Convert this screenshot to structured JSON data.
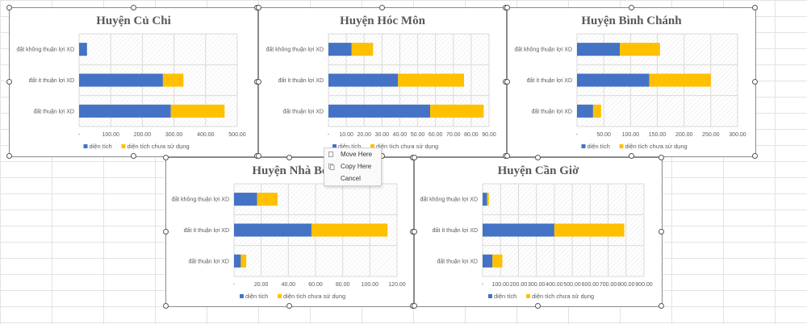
{
  "chart_data": [
    {
      "type": "bar",
      "title": "Huyện Củ Chi",
      "categories": [
        "đất không thuận lợi XD",
        "đất ít thuận lợi XD",
        "đất thuận lợi XD"
      ],
      "series": [
        {
          "name": "diện tích",
          "values": [
            25,
            265,
            290
          ]
        },
        {
          "name": "diện tích chưa sử dụng",
          "values": [
            0,
            65,
            170
          ]
        }
      ],
      "xlim": [
        0,
        500
      ],
      "xticks": [
        "-",
        "100.00",
        "200.00",
        "300.00",
        "400.00",
        "500.00"
      ],
      "stacked": true,
      "grid": true,
      "legend": "bottom"
    },
    {
      "type": "bar",
      "title": "Huyện Hóc Môn",
      "categories": [
        "đất không thuận lợi XD",
        "đất ít thuận lợi XD",
        "đất thuận lợi XD"
      ],
      "series": [
        {
          "name": "diện tích",
          "values": [
            13,
            39,
            57
          ]
        },
        {
          "name": "diện tích chưa sử dụng",
          "values": [
            12,
            37,
            30
          ]
        }
      ],
      "xlim": [
        0,
        90
      ],
      "xticks": [
        "-",
        "10.00",
        "20.00",
        "30.00",
        "40.00",
        "50.00",
        "60.00",
        "70.00",
        "80.00",
        "90.00"
      ],
      "stacked": true,
      "grid": true,
      "legend": "bottom"
    },
    {
      "type": "bar",
      "title": "Huyện Bình Chánh",
      "categories": [
        "đất không thuận lợi XD",
        "đất ít thuận lợi XD",
        "đất thuận lợi XD"
      ],
      "series": [
        {
          "name": "diện tích",
          "values": [
            80,
            135,
            30
          ]
        },
        {
          "name": "diện tích chưa sử dụng",
          "values": [
            75,
            115,
            15
          ]
        }
      ],
      "xlim": [
        0,
        300
      ],
      "xticks": [
        "-",
        "50.00",
        "100.00",
        "150.00",
        "200.00",
        "250.00",
        "300.00"
      ],
      "stacked": true,
      "grid": true,
      "legend": "bottom"
    },
    {
      "type": "bar",
      "title": "Huyện Nhà Bè",
      "categories": [
        "đất không thuận lợi XD",
        "đất ít thuận lợi XD",
        "đất thuận lợi XD"
      ],
      "series": [
        {
          "name": "diện tích",
          "values": [
            17,
            57,
            5
          ]
        },
        {
          "name": "diện tích chưa sử dụng",
          "values": [
            15,
            56,
            4
          ]
        }
      ],
      "xlim": [
        0,
        120
      ],
      "xticks": [
        "-",
        "20.00",
        "40.00",
        "60.00",
        "80.00",
        "100.00",
        "120.00"
      ],
      "stacked": true,
      "grid": true,
      "legend": "bottom"
    },
    {
      "type": "bar",
      "title": "Huyện Cần Giờ",
      "categories": [
        "đất không thuận lợi XD",
        "đất ít thuận lợi XD",
        "đất thuận lợi XD"
      ],
      "series": [
        {
          "name": "diện tích",
          "values": [
            25,
            400,
            55
          ]
        },
        {
          "name": "diện tích chưa sử dụng",
          "values": [
            10,
            390,
            55
          ]
        }
      ],
      "xlim": [
        0,
        900
      ],
      "xticks": [
        "-",
        "100.00",
        "200.00",
        "300.00",
        "400.00",
        "500.00",
        "600.00",
        "700.00",
        "800.00",
        "900.00"
      ],
      "stacked": true,
      "grid": true,
      "legend": "bottom"
    }
  ],
  "colors": {
    "series1": "#4472c4",
    "series2": "#ffc000"
  },
  "context_menu": {
    "items": [
      {
        "label": "Move Here",
        "icon": "move-icon"
      },
      {
        "label": "Copy Here",
        "icon": "copy-icon"
      },
      {
        "label": "Cancel",
        "icon": ""
      }
    ]
  }
}
